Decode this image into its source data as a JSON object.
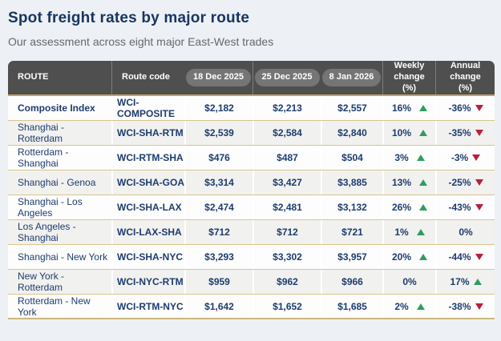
{
  "page": {
    "title": "Spot freight rates by major route",
    "subtitle": "Our assessment across eight major East-West trades"
  },
  "colors": {
    "title_navy": "#16365f",
    "text_navy": "#1d3c6e",
    "header_gray": "#4f4f4f",
    "pill_gray": "#757575",
    "gold_border": "#d9c48e",
    "up_green": "#2e9e5f",
    "down_red": "#b81f3d",
    "page_background": "#edf0f5",
    "alt_row": "#f1f1ef"
  },
  "table": {
    "headers": {
      "route": "ROUTE",
      "code": "Route code",
      "d1": "18 Dec 2025",
      "d2": "25 Dec 2025",
      "d3": "8 Jan 2026",
      "weekly": "Weekly change (%)",
      "annual": "Annual change (%)"
    },
    "rows": [
      {
        "route": "Composite Index",
        "code": "WCI-COMPOSITE",
        "d1": "$2,182",
        "d2": "$2,213",
        "d3": "$2,557",
        "weekly": "16%",
        "weekly_dir": "up",
        "annual": "-36%",
        "annual_dir": "down",
        "bold": true
      },
      {
        "route": "Shanghai - Rotterdam",
        "code": "WCI-SHA-RTM",
        "d1": "$2,539",
        "d2": "$2,584",
        "d3": "$2,840",
        "weekly": "10%",
        "weekly_dir": "up",
        "annual": "-35%",
        "annual_dir": "down",
        "bold": false
      },
      {
        "route": "Rotterdam - Shanghai",
        "code": "WCI-RTM-SHA",
        "d1": "$476",
        "d2": "$487",
        "d3": "$504",
        "weekly": "3%",
        "weekly_dir": "up",
        "annual": "-3%",
        "annual_dir": "down",
        "bold": false
      },
      {
        "route": "Shanghai - Genoa",
        "code": "WCI-SHA-GOA",
        "d1": "$3,314",
        "d2": "$3,427",
        "d3": "$3,885",
        "weekly": "13%",
        "weekly_dir": "up",
        "annual": "-25%",
        "annual_dir": "down",
        "bold": false
      },
      {
        "route": "Shanghai - Los Angeles",
        "code": "WCI-SHA-LAX",
        "d1": "$2,474",
        "d2": "$2,481",
        "d3": "$3,132",
        "weekly": "26%",
        "weekly_dir": "up",
        "annual": "-43%",
        "annual_dir": "down",
        "bold": false
      },
      {
        "route": "Los Angeles - Shanghai",
        "code": "WCI-LAX-SHA",
        "d1": "$712",
        "d2": "$712",
        "d3": "$721",
        "weekly": "1%",
        "weekly_dir": "up",
        "annual": "0%",
        "annual_dir": "none",
        "bold": false
      },
      {
        "route": "Shanghai - New York",
        "code": "WCI-SHA-NYC",
        "d1": "$3,293",
        "d2": "$3,302",
        "d3": "$3,957",
        "weekly": "20%",
        "weekly_dir": "up",
        "annual": "-44%",
        "annual_dir": "down",
        "bold": false
      },
      {
        "route": "New York - Rotterdam",
        "code": "WCI-NYC-RTM",
        "d1": "$959",
        "d2": "$962",
        "d3": "$966",
        "weekly": "0%",
        "weekly_dir": "none",
        "annual": "17%",
        "annual_dir": "up",
        "bold": false
      },
      {
        "route": "Rotterdam - New York",
        "code": "WCI-RTM-NYC",
        "d1": "$1,642",
        "d2": "$1,652",
        "d3": "$1,685",
        "weekly": "2%",
        "weekly_dir": "up",
        "annual": "-38%",
        "annual_dir": "down",
        "bold": false
      }
    ]
  }
}
